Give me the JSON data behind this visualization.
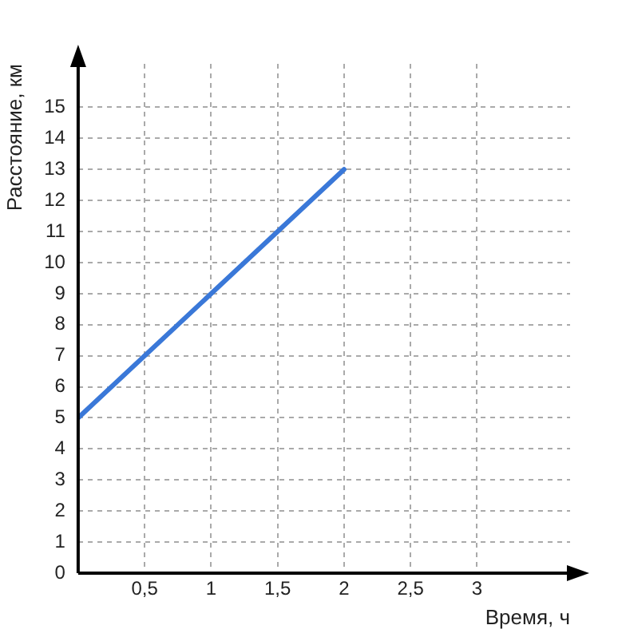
{
  "chart_data": {
    "type": "line",
    "xlabel": "Время, ч",
    "ylabel": "Расстояние, км",
    "x": [
      0,
      2
    ],
    "series": [
      {
        "color": "#3a78d8",
        "values": [
          5,
          13
        ]
      }
    ],
    "xlim": [
      0,
      3.7
    ],
    "ylim": [
      0,
      16.4
    ],
    "xticks": [
      {
        "value": 0.5,
        "label": "0,5"
      },
      1,
      {
        "value": 1.5,
        "label": "1,5"
      },
      2,
      {
        "value": 2.5,
        "label": "2,5"
      },
      3
    ],
    "yticks": [
      0,
      1,
      2,
      3,
      4,
      5,
      6,
      7,
      8,
      9,
      10,
      11,
      12,
      13,
      14,
      15
    ],
    "grid": true,
    "legend": false,
    "marker": "none",
    "line_style": "solid"
  }
}
